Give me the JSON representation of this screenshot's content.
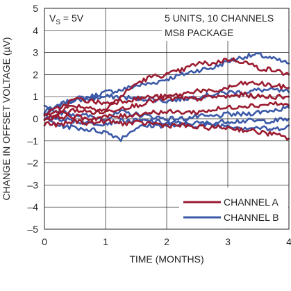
{
  "chart_data": {
    "type": "line",
    "xlabel": "TIME (MONTHS)",
    "ylabel": "CHANGE IN OFFSET VOLTAGE (µV)",
    "xlim": [
      0,
      4
    ],
    "ylim": [
      -5,
      5
    ],
    "x_ticks": [
      "0",
      "1",
      "2",
      "3",
      "4"
    ],
    "y_ticks": [
      "–5",
      "–4",
      "–3",
      "–2",
      "–1",
      "0",
      "1",
      "2",
      "3",
      "4",
      "5"
    ],
    "grid": true,
    "annotations": {
      "condition_main": "V",
      "condition_sub": "S",
      "condition_rest": " = 5V",
      "units_line1": "5 UNITS, 10 CHANNELS",
      "units_line2": "MS8 PACKAGE"
    },
    "legend_position": "bottom-right",
    "colors": {
      "channel_a": "#9b1b30",
      "channel_b": "#3b59a8",
      "grid": "#231f20"
    },
    "series": [
      {
        "name": "CHANNEL A",
        "color": "#9b1b30",
        "x": [
          0,
          0.25,
          0.5,
          0.75,
          1.0,
          1.25,
          1.5,
          1.75,
          2.0,
          2.25,
          2.5,
          2.75,
          3.0,
          3.25,
          3.5,
          3.75,
          4.0
        ],
        "y": [
          0.1,
          0.4,
          0.6,
          0.5,
          0.4,
          1.0,
          1.6,
          1.9,
          2.0,
          2.2,
          2.5,
          2.5,
          2.7,
          2.6,
          2.3,
          2.2,
          2.0
        ]
      },
      {
        "name": "CHANNEL A",
        "color": "#9b1b30",
        "x": [
          0,
          0.25,
          0.5,
          0.75,
          1.0,
          1.25,
          1.5,
          1.75,
          2.0,
          2.25,
          2.5,
          2.75,
          3.0,
          3.25,
          3.5,
          3.75,
          4.0
        ],
        "y": [
          0.2,
          0.5,
          0.9,
          0.8,
          0.7,
          0.8,
          0.9,
          1.0,
          1.0,
          1.1,
          1.3,
          1.2,
          1.4,
          1.6,
          1.6,
          1.5,
          1.4
        ]
      },
      {
        "name": "CHANNEL A",
        "color": "#9b1b30",
        "x": [
          0,
          0.25,
          0.5,
          0.75,
          1.0,
          1.25,
          1.5,
          1.75,
          2.0,
          2.25,
          2.5,
          2.75,
          3.0,
          3.25,
          3.5,
          3.75,
          4.0
        ],
        "y": [
          0.0,
          0.2,
          0.4,
          0.3,
          0.3,
          0.5,
          0.6,
          0.8,
          0.9,
          0.9,
          0.9,
          1.0,
          1.0,
          1.1,
          1.0,
          1.0,
          1.0
        ]
      },
      {
        "name": "CHANNEL A",
        "color": "#9b1b30",
        "x": [
          0,
          0.25,
          0.5,
          0.75,
          1.0,
          1.25,
          1.5,
          1.75,
          2.0,
          2.25,
          2.5,
          2.75,
          3.0,
          3.25,
          3.5,
          3.75,
          4.0
        ],
        "y": [
          0.0,
          0.1,
          0.1,
          0.0,
          0.1,
          0.1,
          0.2,
          0.3,
          0.3,
          0.3,
          0.3,
          0.4,
          0.5,
          0.6,
          0.6,
          0.7,
          0.6
        ]
      },
      {
        "name": "CHANNEL A",
        "color": "#9b1b30",
        "x": [
          0,
          0.25,
          0.5,
          0.75,
          1.0,
          1.25,
          1.5,
          1.75,
          2.0,
          2.25,
          2.5,
          2.75,
          3.0,
          3.25,
          3.5,
          3.75,
          4.0
        ],
        "y": [
          -0.2,
          -0.3,
          -0.1,
          -0.2,
          -0.1,
          -0.2,
          -0.2,
          -0.2,
          -0.3,
          -0.3,
          -0.4,
          -0.4,
          -0.4,
          -0.5,
          -0.6,
          -0.7,
          -0.9
        ]
      },
      {
        "name": "CHANNEL B",
        "color": "#3b59a8",
        "x": [
          0,
          0.25,
          0.5,
          0.75,
          1.0,
          1.25,
          1.5,
          1.75,
          2.0,
          2.25,
          2.5,
          2.75,
          3.0,
          3.25,
          3.5,
          3.75,
          4.0
        ],
        "y": [
          0.2,
          0.6,
          0.9,
          1.0,
          1.2,
          1.3,
          1.5,
          1.6,
          1.8,
          2.0,
          2.2,
          2.3,
          2.6,
          2.8,
          2.9,
          2.7,
          2.5
        ]
      },
      {
        "name": "CHANNEL B",
        "color": "#3b59a8",
        "x": [
          0,
          0.25,
          0.5,
          0.75,
          1.0,
          1.25,
          1.5,
          1.75,
          2.0,
          2.25,
          2.5,
          2.75,
          3.0,
          3.25,
          3.5,
          3.75,
          4.0
        ],
        "y": [
          0.3,
          0.7,
          0.8,
          0.9,
          1.0,
          1.0,
          0.9,
          0.9,
          0.8,
          0.9,
          1.0,
          1.1,
          1.2,
          1.2,
          1.3,
          1.3,
          1.2
        ]
      },
      {
        "name": "CHANNEL B",
        "color": "#3b59a8",
        "x": [
          0,
          0.25,
          0.5,
          0.75,
          1.0,
          1.25,
          1.5,
          1.75,
          2.0,
          2.25,
          2.5,
          2.75,
          3.0,
          3.25,
          3.5,
          3.75,
          4.0
        ],
        "y": [
          0.5,
          0.3,
          0.2,
          0.1,
          0.0,
          0.3,
          0.2,
          0.1,
          0.0,
          0.0,
          0.1,
          0.1,
          0.2,
          0.2,
          0.3,
          0.4,
          0.5
        ]
      },
      {
        "name": "CHANNEL B",
        "color": "#3b59a8",
        "x": [
          0,
          0.25,
          0.5,
          0.75,
          1.0,
          1.25,
          1.5,
          1.75,
          2.0,
          2.25,
          2.5,
          2.75,
          3.0,
          3.25,
          3.5,
          3.75,
          4.0
        ],
        "y": [
          0.1,
          0.0,
          -0.1,
          -0.2,
          -0.2,
          -0.1,
          -0.1,
          -0.1,
          -0.2,
          -0.2,
          -0.2,
          -0.2,
          -0.1,
          -0.1,
          -0.1,
          -0.1,
          0.0
        ]
      },
      {
        "name": "CHANNEL B",
        "color": "#3b59a8",
        "x": [
          0,
          0.25,
          0.5,
          0.75,
          1.0,
          1.25,
          1.5,
          1.75,
          2.0,
          2.25,
          2.5,
          2.75,
          3.0,
          3.25,
          3.5,
          3.75,
          4.0
        ],
        "y": [
          0.0,
          -0.3,
          -0.4,
          -0.5,
          -0.6,
          -0.9,
          -0.4,
          -0.3,
          -0.3,
          -0.3,
          -0.3,
          -0.3,
          -0.3,
          -0.4,
          -0.4,
          -0.5,
          -0.3
        ]
      }
    ]
  }
}
